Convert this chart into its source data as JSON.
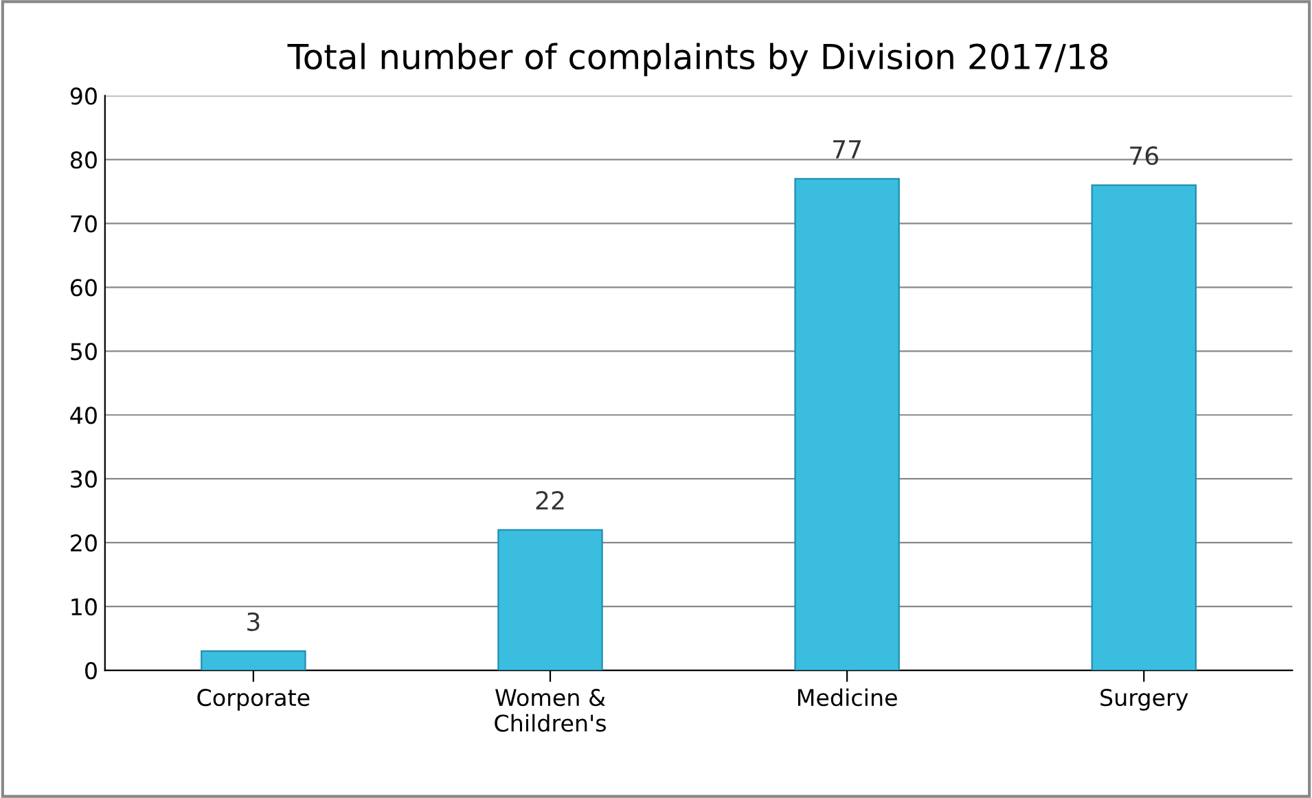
{
  "chart_data": {
    "type": "bar",
    "title": "Total number of complaints by Division 2017/18",
    "categories": [
      "Corporate",
      "Women &\nChildren's",
      "Medicine",
      "Surgery"
    ],
    "values": [
      3,
      22,
      77,
      76
    ],
    "color": "#3bbde0",
    "ylim": [
      0,
      90
    ],
    "yticks": [
      0,
      10,
      20,
      30,
      40,
      50,
      60,
      70,
      80,
      90
    ],
    "grid": "y",
    "data_labels": true
  }
}
